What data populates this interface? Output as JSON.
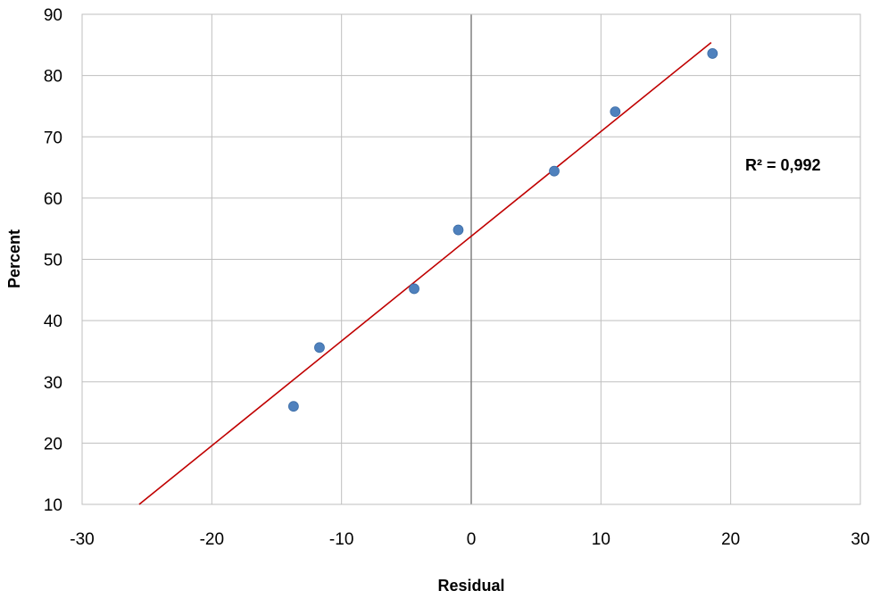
{
  "chart_data": {
    "type": "scatter",
    "xlabel": "Residual",
    "ylabel": "Percent",
    "xlim": [
      -30,
      30
    ],
    "ylim": [
      10,
      90
    ],
    "xticks": [
      "-30",
      "-20",
      "-10",
      "0",
      "10",
      "20",
      "30"
    ],
    "yticks": [
      "10",
      "20",
      "30",
      "40",
      "50",
      "60",
      "70",
      "80",
      "90"
    ],
    "grid": true,
    "points": [
      {
        "x": -13.7,
        "y": 26.0
      },
      {
        "x": -11.7,
        "y": 35.6
      },
      {
        "x": -4.4,
        "y": 45.2
      },
      {
        "x": -1.0,
        "y": 54.8
      },
      {
        "x": 6.4,
        "y": 64.4
      },
      {
        "x": 11.1,
        "y": 74.1
      },
      {
        "x": 18.6,
        "y": 83.6
      }
    ],
    "trendline": {
      "x1": -25.6,
      "y1": 10,
      "x2": 18.5,
      "y2": 85.4
    },
    "annotation": "R² = 0,992",
    "colors": {
      "point": "#4f81bd",
      "trendline": "#c00000",
      "grid": "#bfbfbf",
      "zero_axis": "#808080"
    }
  }
}
